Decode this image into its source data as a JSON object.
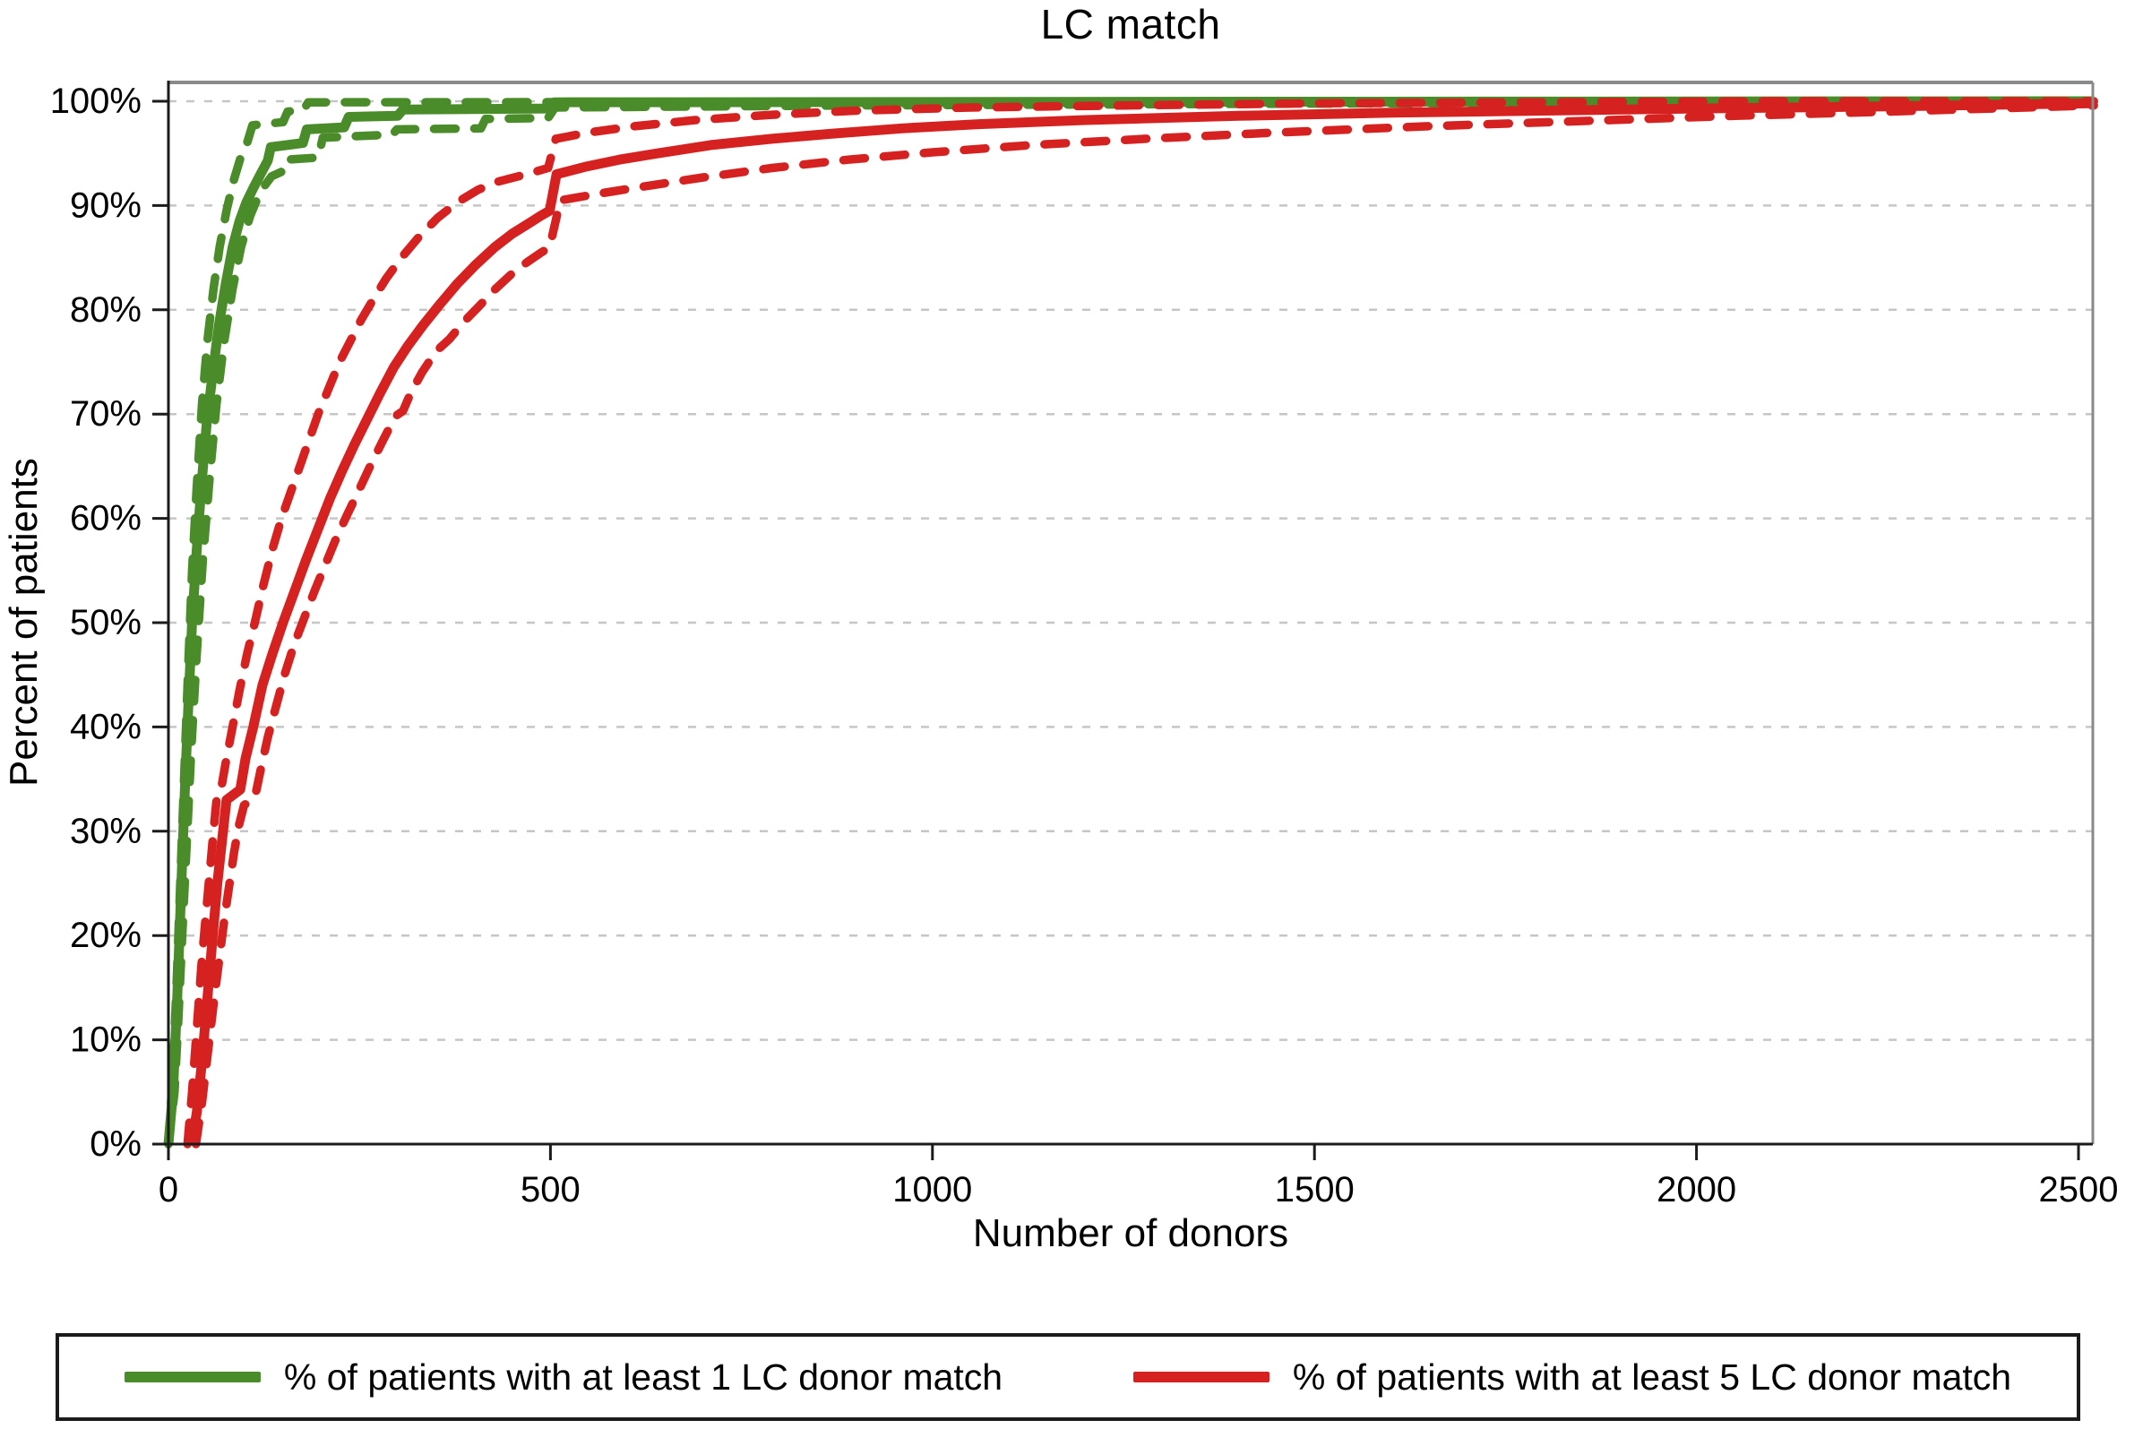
{
  "title": "LC match",
  "axes": {
    "x_label": "Number of donors",
    "y_label": "Percent of patients",
    "x_ticks": [
      {
        "value": 0,
        "label": "0"
      },
      {
        "value": 500,
        "label": "500"
      },
      {
        "value": 1000,
        "label": "1000"
      },
      {
        "value": 1500,
        "label": "1500"
      },
      {
        "value": 2000,
        "label": "2000"
      },
      {
        "value": 2500,
        "label": "2500"
      }
    ],
    "y_ticks": [
      {
        "value": 0,
        "label": "0%"
      },
      {
        "value": 10,
        "label": "10%"
      },
      {
        "value": 20,
        "label": "20%"
      },
      {
        "value": 30,
        "label": "30%"
      },
      {
        "value": 40,
        "label": "40%"
      },
      {
        "value": 50,
        "label": "50%"
      },
      {
        "value": 60,
        "label": "60%"
      },
      {
        "value": 70,
        "label": "70%"
      },
      {
        "value": 80,
        "label": "80%"
      },
      {
        "value": 90,
        "label": "90%"
      },
      {
        "value": 100,
        "label": "100%"
      }
    ]
  },
  "colors": {
    "green": "#4a8b2a",
    "red": "#d52221",
    "grid": "#c6c6c6",
    "axis_black": "#1b1b1b",
    "frame_gray": "#8a8a8a"
  },
  "legend": {
    "items": [
      {
        "label": "% of patients with at least 1 LC donor match",
        "color": "#4a8b2a"
      },
      {
        "label": "% of patients with at least 5 LC donor match",
        "color": "#d52221"
      }
    ]
  },
  "chart_data": {
    "type": "line",
    "title": "LC match",
    "xlabel": "Number of donors",
    "ylabel": "Percent of patients",
    "xlim": [
      0,
      2520
    ],
    "ylim": [
      0,
      100
    ],
    "grid": "horizontal, light gray dashed, every 10%",
    "legend_position": "bottom box",
    "note": "Kaplan-Meier-style cumulative curves with dashed 95% CI bands; visible steps near 125, 175, 230, 305 and 500 donors",
    "series": [
      {
        "key": "green-solid",
        "name": "% of patients with at least 1 LC donor match",
        "role": "estimate",
        "color": "#4a8b2a",
        "style": "solid",
        "points": [
          [
            0,
            0
          ],
          [
            6,
            5
          ],
          [
            11,
            13
          ],
          [
            16,
            23
          ],
          [
            21,
            33
          ],
          [
            26,
            42
          ],
          [
            31,
            50
          ],
          [
            37,
            57
          ],
          [
            43,
            63
          ],
          [
            50,
            69
          ],
          [
            58,
            74
          ],
          [
            66,
            78.5
          ],
          [
            75,
            82.5
          ],
          [
            84,
            86
          ],
          [
            93,
            88.5
          ],
          [
            102,
            90.3
          ],
          [
            112,
            91.8
          ],
          [
            122,
            93.2
          ],
          [
            130,
            94.3
          ],
          [
            134,
            95.6
          ],
          [
            155,
            95.8
          ],
          [
            176,
            96
          ],
          [
            181,
            97.3
          ],
          [
            230,
            97.5
          ],
          [
            236,
            98.5
          ],
          [
            300,
            98.6
          ],
          [
            307,
            99.2
          ],
          [
            495,
            99.3
          ],
          [
            505,
            99.9
          ],
          [
            1300,
            99.95
          ],
          [
            2520,
            100
          ]
        ]
      },
      {
        "key": "green-upper-ci",
        "name": "at least 1 LC donor match — upper 95% CI",
        "role": "upper-ci",
        "color": "#4a8b2a",
        "style": "dashed",
        "points": [
          [
            0,
            0
          ],
          [
            6,
            7
          ],
          [
            11,
            16
          ],
          [
            16,
            26
          ],
          [
            21,
            36
          ],
          [
            26,
            46
          ],
          [
            31,
            55
          ],
          [
            37,
            63
          ],
          [
            44,
            71
          ],
          [
            51,
            77
          ],
          [
            59,
            82
          ],
          [
            67,
            86
          ],
          [
            76,
            89.5
          ],
          [
            85,
            92.3
          ],
          [
            94,
            94.5
          ],
          [
            103,
            96
          ],
          [
            110,
            97.7
          ],
          [
            150,
            98
          ],
          [
            156,
            99
          ],
          [
            177,
            99.2
          ],
          [
            183,
            99.9
          ],
          [
            2520,
            100
          ]
        ]
      },
      {
        "key": "green-lower-ci",
        "name": "at least 1 LC donor match — lower 95% CI",
        "role": "lower-ci",
        "color": "#4a8b2a",
        "style": "dashed",
        "points": [
          [
            0,
            0
          ],
          [
            8,
            5
          ],
          [
            13,
            12
          ],
          [
            18,
            20
          ],
          [
            24,
            29
          ],
          [
            30,
            38
          ],
          [
            37,
            47
          ],
          [
            45,
            56
          ],
          [
            54,
            64
          ],
          [
            63,
            71
          ],
          [
            73,
            77
          ],
          [
            84,
            82
          ],
          [
            95,
            86
          ],
          [
            107,
            89
          ],
          [
            120,
            91.3
          ],
          [
            135,
            92.8
          ],
          [
            150,
            93.3
          ],
          [
            154,
            94.4
          ],
          [
            196,
            94.6
          ],
          [
            202,
            96.5
          ],
          [
            293,
            96.8
          ],
          [
            299,
            97.3
          ],
          [
            409,
            97.4
          ],
          [
            415,
            98.3
          ],
          [
            497,
            98.4
          ],
          [
            506,
            99.4
          ],
          [
            900,
            99.6
          ],
          [
            1600,
            99.8
          ],
          [
            2520,
            100
          ]
        ]
      },
      {
        "key": "red-solid",
        "name": "% of patients with at least 5 LC donor match",
        "role": "estimate",
        "color": "#d52221",
        "style": "solid",
        "points": [
          [
            30,
            0
          ],
          [
            37,
            3
          ],
          [
            44,
            8
          ],
          [
            51,
            14
          ],
          [
            58,
            20
          ],
          [
            64,
            25
          ],
          [
            70,
            29
          ],
          [
            76,
            33
          ],
          [
            94,
            34
          ],
          [
            101,
            37
          ],
          [
            111,
            40
          ],
          [
            123,
            44
          ],
          [
            136,
            47
          ],
          [
            150,
            50
          ],
          [
            165,
            53
          ],
          [
            180,
            56
          ],
          [
            196,
            59
          ],
          [
            212,
            62
          ],
          [
            227,
            64.5
          ],
          [
            243,
            67
          ],
          [
            260,
            69.5
          ],
          [
            277,
            72
          ],
          [
            295,
            74.5
          ],
          [
            313,
            76.5
          ],
          [
            333,
            78.5
          ],
          [
            355,
            80.5
          ],
          [
            378,
            82.5
          ],
          [
            402,
            84.3
          ],
          [
            427,
            86
          ],
          [
            450,
            87.3
          ],
          [
            472,
            88.3
          ],
          [
            487,
            89
          ],
          [
            499,
            89.5
          ],
          [
            508,
            93
          ],
          [
            545,
            93.7
          ],
          [
            590,
            94.4
          ],
          [
            640,
            95
          ],
          [
            710,
            95.8
          ],
          [
            790,
            96.4
          ],
          [
            870,
            96.9
          ],
          [
            960,
            97.4
          ],
          [
            1060,
            97.8
          ],
          [
            1200,
            98.2
          ],
          [
            1400,
            98.6
          ],
          [
            1600,
            98.9
          ],
          [
            1800,
            99.1
          ],
          [
            2000,
            99.3
          ],
          [
            2250,
            99.5
          ],
          [
            2520,
            99.8
          ]
        ]
      },
      {
        "key": "red-upper-ci",
        "name": "at least 5 LC donor match — upper 95% CI",
        "role": "upper-ci",
        "color": "#d52221",
        "style": "dashed",
        "points": [
          [
            25,
            0
          ],
          [
            31,
            5
          ],
          [
            37,
            11
          ],
          [
            43,
            17
          ],
          [
            49,
            22
          ],
          [
            54,
            26
          ],
          [
            59,
            30
          ],
          [
            63,
            33
          ],
          [
            70,
            34.5
          ],
          [
            76,
            37
          ],
          [
            84,
            40
          ],
          [
            93,
            43.5
          ],
          [
            103,
            47
          ],
          [
            113,
            50
          ],
          [
            124,
            53.5
          ],
          [
            136,
            57
          ],
          [
            148,
            60
          ],
          [
            160,
            62.5
          ],
          [
            172,
            65
          ],
          [
            184,
            67.5
          ],
          [
            196,
            70
          ],
          [
            210,
            72.5
          ],
          [
            224,
            75
          ],
          [
            238,
            77
          ],
          [
            252,
            79
          ],
          [
            268,
            81
          ],
          [
            285,
            83
          ],
          [
            305,
            85
          ],
          [
            328,
            87
          ],
          [
            352,
            88.8
          ],
          [
            378,
            90.3
          ],
          [
            405,
            91.5
          ],
          [
            432,
            92.3
          ],
          [
            458,
            92.8
          ],
          [
            478,
            93.2
          ],
          [
            497,
            93.6
          ],
          [
            507,
            96.4
          ],
          [
            550,
            97
          ],
          [
            610,
            97.6
          ],
          [
            690,
            98.2
          ],
          [
            790,
            98.7
          ],
          [
            900,
            99.1
          ],
          [
            1050,
            99.4
          ],
          [
            1250,
            99.6
          ],
          [
            1500,
            99.8
          ],
          [
            1800,
            99.9
          ],
          [
            2100,
            100
          ],
          [
            2520,
            100
          ]
        ]
      },
      {
        "key": "red-lower-ci",
        "name": "at least 5 LC donor match — lower 95% CI",
        "role": "lower-ci",
        "color": "#d52221",
        "style": "dashed",
        "points": [
          [
            36,
            0
          ],
          [
            44,
            4
          ],
          [
            52,
            9
          ],
          [
            60,
            14
          ],
          [
            67,
            18
          ],
          [
            74,
            22
          ],
          [
            80,
            25
          ],
          [
            86,
            28
          ],
          [
            92,
            30.5
          ],
          [
            99,
            32.5
          ],
          [
            113,
            33.2
          ],
          [
            121,
            36
          ],
          [
            130,
            39
          ],
          [
            141,
            42
          ],
          [
            152,
            45
          ],
          [
            165,
            48
          ],
          [
            178,
            50.5
          ],
          [
            191,
            53
          ],
          [
            205,
            55.5
          ],
          [
            219,
            58
          ],
          [
            233,
            60.2
          ],
          [
            248,
            62.5
          ],
          [
            264,
            65
          ],
          [
            281,
            67.5
          ],
          [
            297,
            69.8
          ],
          [
            307,
            70.3
          ],
          [
            317,
            72
          ],
          [
            332,
            74
          ],
          [
            350,
            76
          ],
          [
            368,
            77.2
          ],
          [
            386,
            78.8
          ],
          [
            406,
            80.3
          ],
          [
            428,
            82
          ],
          [
            450,
            83.5
          ],
          [
            470,
            84.6
          ],
          [
            486,
            85.4
          ],
          [
            499,
            86
          ],
          [
            513,
            90.5
          ],
          [
            560,
            91.1
          ],
          [
            620,
            91.8
          ],
          [
            700,
            92.7
          ],
          [
            790,
            93.6
          ],
          [
            890,
            94.4
          ],
          [
            1000,
            95.1
          ],
          [
            1130,
            95.8
          ],
          [
            1280,
            96.4
          ],
          [
            1450,
            97
          ],
          [
            1650,
            97.6
          ],
          [
            1850,
            98.1
          ],
          [
            2050,
            98.6
          ],
          [
            2250,
            99
          ],
          [
            2520,
            99.6
          ]
        ]
      }
    ]
  }
}
